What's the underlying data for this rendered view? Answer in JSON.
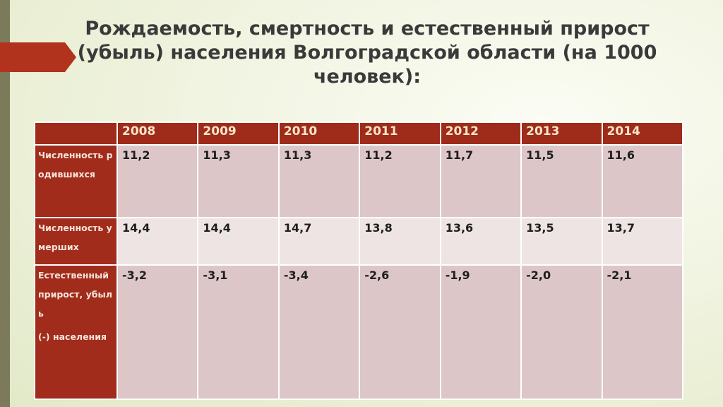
{
  "header": {
    "title": "Рождаемость, смертность и естественный прирост (убыль) населения Волгоградской области (на 1000 человек):"
  },
  "table": {
    "columns": [
      "2008",
      "2009",
      "2010",
      "2011",
      "2012",
      "2013",
      "2014"
    ],
    "rows": [
      {
        "label": [
          "Численность родившихся"
        ],
        "cells": [
          "11,2",
          "11,3",
          "11,3",
          "11,2",
          "11,7",
          "11,5",
          "11,6"
        ]
      },
      {
        "label": [
          "Численность умерших"
        ],
        "cells": [
          "14,4",
          "14,4",
          "14,7",
          "13,8",
          "13,6",
          "13,5",
          "13,7"
        ]
      },
      {
        "label": [
          "Естественный прирост, убыль",
          "(-) населения"
        ],
        "cells": [
          "-3,2",
          "-3,1",
          "-3,4",
          "-2,6",
          "-1,9",
          "-2,0",
          "-2,1"
        ]
      }
    ]
  }
}
